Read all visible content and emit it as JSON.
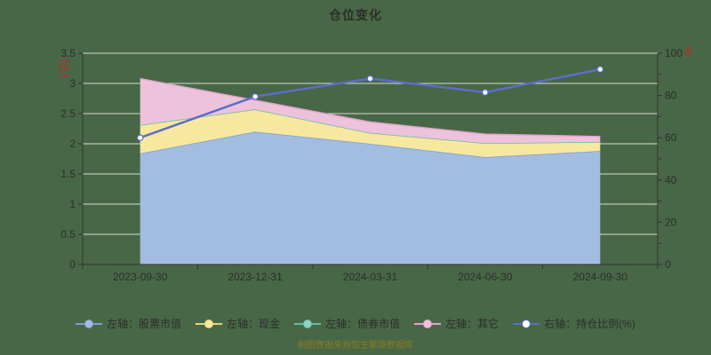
{
  "title": "仓位变化",
  "watermark": "制图数据来自恒生聚源数据库",
  "colors": {
    "background": "#486746",
    "grid_line": "#edf1ea",
    "axis_line": "#333333",
    "text": "#2d2d2d",
    "title_text": "#2b2f2b",
    "watermark_text": "#8c7a1e"
  },
  "chart_data": {
    "type": "area",
    "subtype": "stacked-area-with-line",
    "title": "仓位变化",
    "categories": [
      "2023-09-30",
      "2023-12-31",
      "2024-03-31",
      "2024-06-30",
      "2024-09-30"
    ],
    "series": [
      {
        "name": "左轴：股票市值",
        "type": "area",
        "stack": true,
        "axis": "left",
        "color": "#a3bde0",
        "line_color": "#7d9cd2",
        "values": [
          1.84,
          2.2,
          2.0,
          1.78,
          1.88
        ]
      },
      {
        "name": "左轴：现金",
        "type": "area",
        "stack": true,
        "axis": "left",
        "color": "#f7e8a0",
        "line_color": "#e6d27c",
        "values": [
          0.47,
          0.37,
          0.18,
          0.23,
          0.15
        ]
      },
      {
        "name": "左轴：债券市值",
        "type": "area",
        "stack": true,
        "axis": "left",
        "color": "#8ed3c3",
        "line_color": "#62bfa8",
        "values": [
          0,
          0,
          0,
          0,
          0
        ]
      },
      {
        "name": "左轴：其它",
        "type": "area",
        "stack": true,
        "axis": "left",
        "color": "#edc2db",
        "line_color": "#dfa5cc",
        "values": [
          0.77,
          0.15,
          0.18,
          0.15,
          0.09
        ]
      },
      {
        "name": "右轴：持仓比例(%)",
        "type": "line",
        "axis": "right",
        "color": "#5b6ec8",
        "marker_fill": "#ffffff",
        "values": [
          60.0,
          79.5,
          88.0,
          81.5,
          92.4
        ]
      }
    ],
    "left_axis": {
      "min": 0,
      "max": 3.5,
      "step": 0.5,
      "unit": "(亿)",
      "unit_color": "#cc2222",
      "tick_labels": [
        "0",
        "0.5",
        "1",
        "1.5",
        "2",
        "2.5",
        "3",
        "3.5"
      ]
    },
    "right_axis": {
      "min": 0,
      "max": 100,
      "step": 20,
      "minor_step": 10,
      "unit": "%",
      "unit_color": "#cc2222",
      "tick_labels": [
        "0",
        "20",
        "40",
        "60",
        "80",
        "100"
      ]
    },
    "grid": true,
    "legend_position": "bottom"
  }
}
